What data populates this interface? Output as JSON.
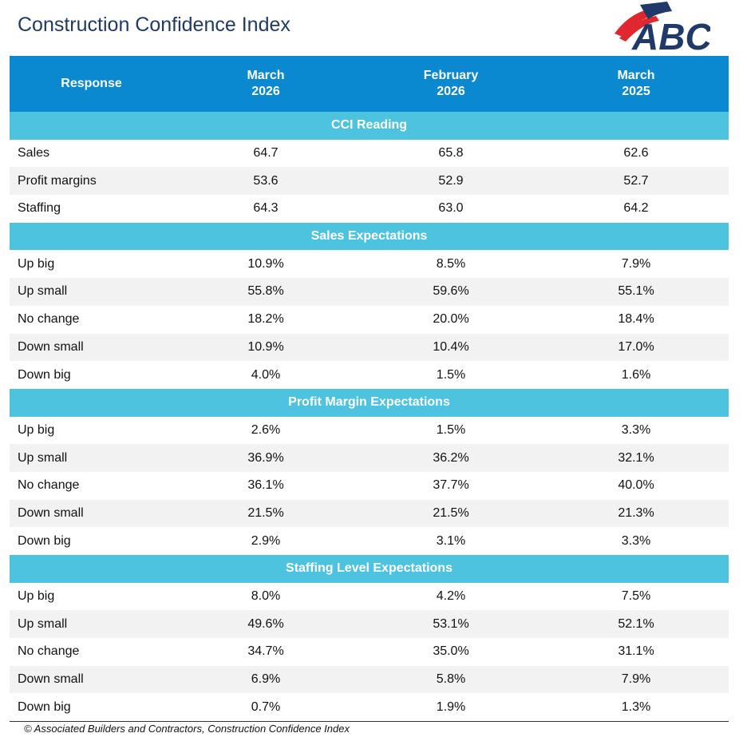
{
  "title": "Construction Confidence Index",
  "logo": {
    "text": "ABC",
    "colors": {
      "navy": "#1f3a68",
      "red": "#e0262e"
    }
  },
  "footer": "© Associated Builders and Contractors, Construction Confidence Index",
  "chart_data": {
    "type": "table",
    "columns": [
      "Response",
      "March\n2026",
      "February\n2026",
      "March\n2025"
    ],
    "sections": [
      {
        "title": "CCI Reading",
        "rows": [
          {
            "label": "Sales",
            "values": [
              "64.7",
              "65.8",
              "62.6"
            ]
          },
          {
            "label": "Profit margins",
            "values": [
              "53.6",
              "52.9",
              "52.7"
            ]
          },
          {
            "label": "Staffing",
            "values": [
              "64.3",
              "63.0",
              "64.2"
            ]
          }
        ]
      },
      {
        "title": "Sales Expectations",
        "rows": [
          {
            "label": "Up big",
            "values": [
              "10.9%",
              "8.5%",
              "7.9%"
            ]
          },
          {
            "label": "Up small",
            "values": [
              "55.8%",
              "59.6%",
              "55.1%"
            ]
          },
          {
            "label": "No change",
            "values": [
              "18.2%",
              "20.0%",
              "18.4%"
            ]
          },
          {
            "label": "Down small",
            "values": [
              "10.9%",
              "10.4%",
              "17.0%"
            ]
          },
          {
            "label": "Down big",
            "values": [
              "4.0%",
              "1.5%",
              "1.6%"
            ]
          }
        ]
      },
      {
        "title": "Profit Margin Expectations",
        "rows": [
          {
            "label": "Up big",
            "values": [
              "2.6%",
              "1.5%",
              "3.3%"
            ]
          },
          {
            "label": "Up small",
            "values": [
              "36.9%",
              "36.2%",
              "32.1%"
            ]
          },
          {
            "label": "No change",
            "values": [
              "36.1%",
              "37.7%",
              "40.0%"
            ]
          },
          {
            "label": "Down small",
            "values": [
              "21.5%",
              "21.5%",
              "21.3%"
            ]
          },
          {
            "label": "Down big",
            "values": [
              "2.9%",
              "3.1%",
              "3.3%"
            ]
          }
        ]
      },
      {
        "title": "Staffing Level Expectations",
        "rows": [
          {
            "label": "Up big",
            "values": [
              "8.0%",
              "4.2%",
              "7.5%"
            ]
          },
          {
            "label": "Up small",
            "values": [
              "49.6%",
              "53.1%",
              "52.1%"
            ]
          },
          {
            "label": "No change",
            "values": [
              "34.7%",
              "35.0%",
              "31.1%"
            ]
          },
          {
            "label": "Down small",
            "values": [
              "6.9%",
              "5.8%",
              "7.9%"
            ]
          },
          {
            "label": "Down big",
            "values": [
              "0.7%",
              "1.9%",
              "1.3%"
            ]
          }
        ]
      }
    ],
    "colors": {
      "header": "#0a88d0",
      "section": "#4dc3e0",
      "alt_row": "#f2f2f2"
    }
  }
}
